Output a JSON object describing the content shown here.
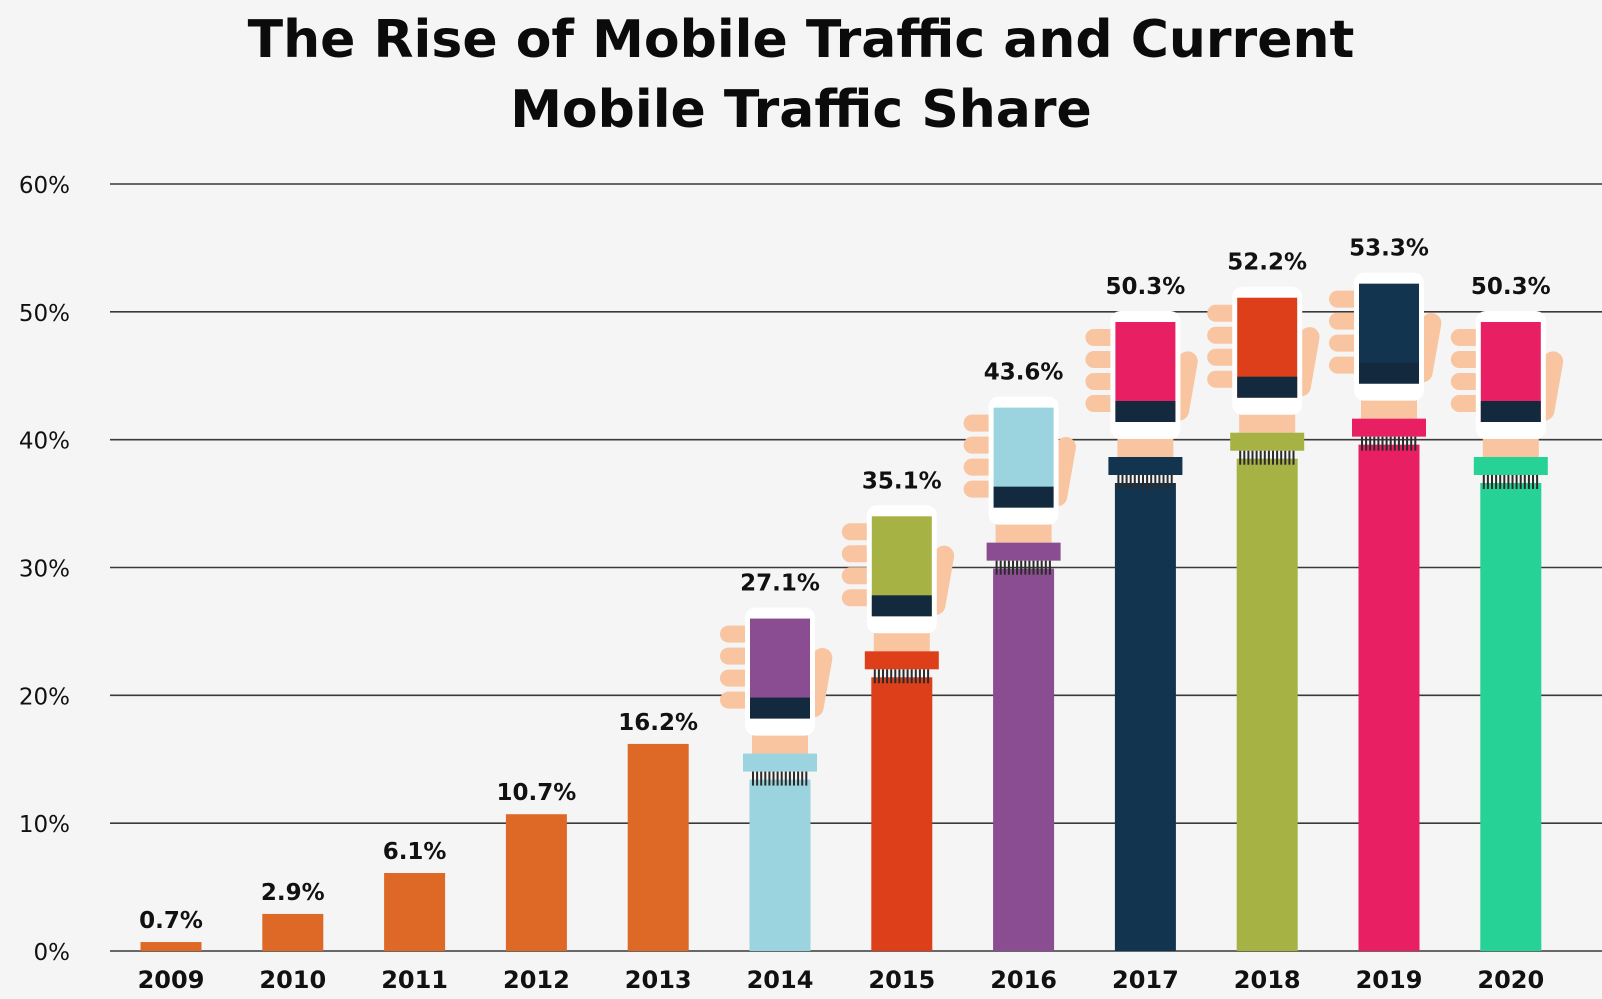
{
  "title_lines": [
    "The Rise of Mobile Traffic and Current",
    "Mobile Traffic Share"
  ],
  "chart_data": {
    "type": "bar",
    "title": "The Rise of Mobile Traffic and Current Mobile Traffic Share",
    "categories": [
      "2009",
      "2010",
      "2011",
      "2012",
      "2013",
      "2014",
      "2015",
      "2016",
      "2017",
      "2018",
      "2019",
      "2020"
    ],
    "values": [
      0.7,
      2.9,
      6.1,
      10.7,
      16.2,
      27.1,
      35.1,
      43.6,
      50.3,
      52.2,
      53.3,
      50.3
    ],
    "value_labels": [
      "0.7%",
      "2.9%",
      "6.1%",
      "10.7%",
      "16.2%",
      "27.1%",
      "35.1%",
      "43.6%",
      "50.3%",
      "52.2%",
      "53.3%",
      "50.3%"
    ],
    "y_ticks": [
      0,
      10,
      20,
      30,
      40,
      50,
      60
    ],
    "y_tick_labels": [
      "0%",
      "10%",
      "20%",
      "30%",
      "40%",
      "50%",
      "60%"
    ],
    "ylim": [
      0,
      60
    ],
    "grid": true,
    "bar_colors": [
      "#de6826",
      "#de6826",
      "#de6826",
      "#de6826",
      "#de6826",
      "#9bd4df",
      "#dd3f1b",
      "#8a4d91",
      "#13344f",
      "#a6b243",
      "#e81f63",
      "#27d296"
    ],
    "phone_screen_colors": [
      "",
      "",
      "",
      "",
      "",
      "#8a4d91",
      "#a6b243",
      "#9bd4df",
      "#e81f63",
      "#dd3f1b",
      "#13344f",
      "#e81f63"
    ],
    "cuff_colors": [
      "",
      "",
      "",
      "",
      "",
      "#9bd4df",
      "#dd3f1b",
      "#8a4d91",
      "#13344f",
      "#a6b243",
      "#e81f63",
      "#27d296"
    ]
  }
}
